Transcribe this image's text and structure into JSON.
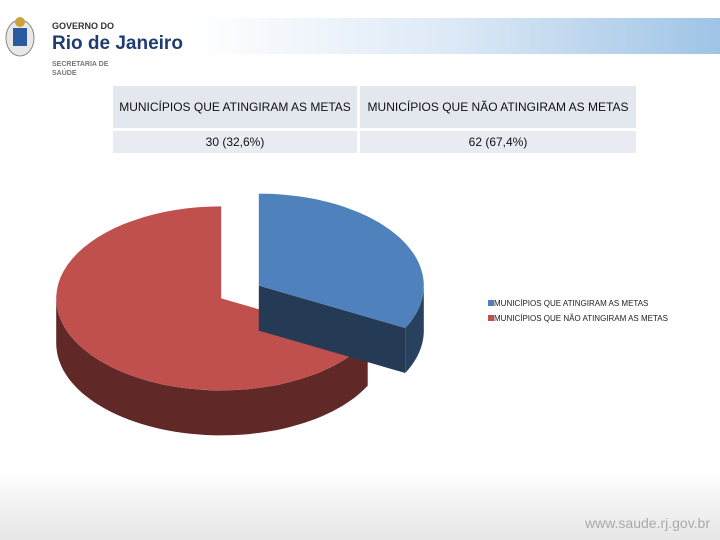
{
  "header": {
    "line1": "GOVERNO DO",
    "line2": "Rio de Janeiro",
    "dept1": "SECRETARIA DE",
    "dept2": "SAÚDE"
  },
  "table": {
    "rows": [
      [
        "MUNICÍPIOS QUE ATINGIRAM AS METAS",
        "MUNICÍPIOS QUE NÃO ATINGIRAM AS METAS"
      ],
      [
        "30 (32,6%)",
        "62 (67,4%)"
      ]
    ]
  },
  "chart_data": {
    "type": "pie",
    "categories": [
      "MUNICÍPIOS QUE ATINGIRAM AS METAS",
      "MUNICÍPIOS QUE NÃO ATINGIRAM AS METAS"
    ],
    "values": [
      30,
      62
    ],
    "colors": [
      "#4f81bd",
      "#c0504d"
    ],
    "legend": "right"
  },
  "footer": "www.saude.rj.gov.br"
}
